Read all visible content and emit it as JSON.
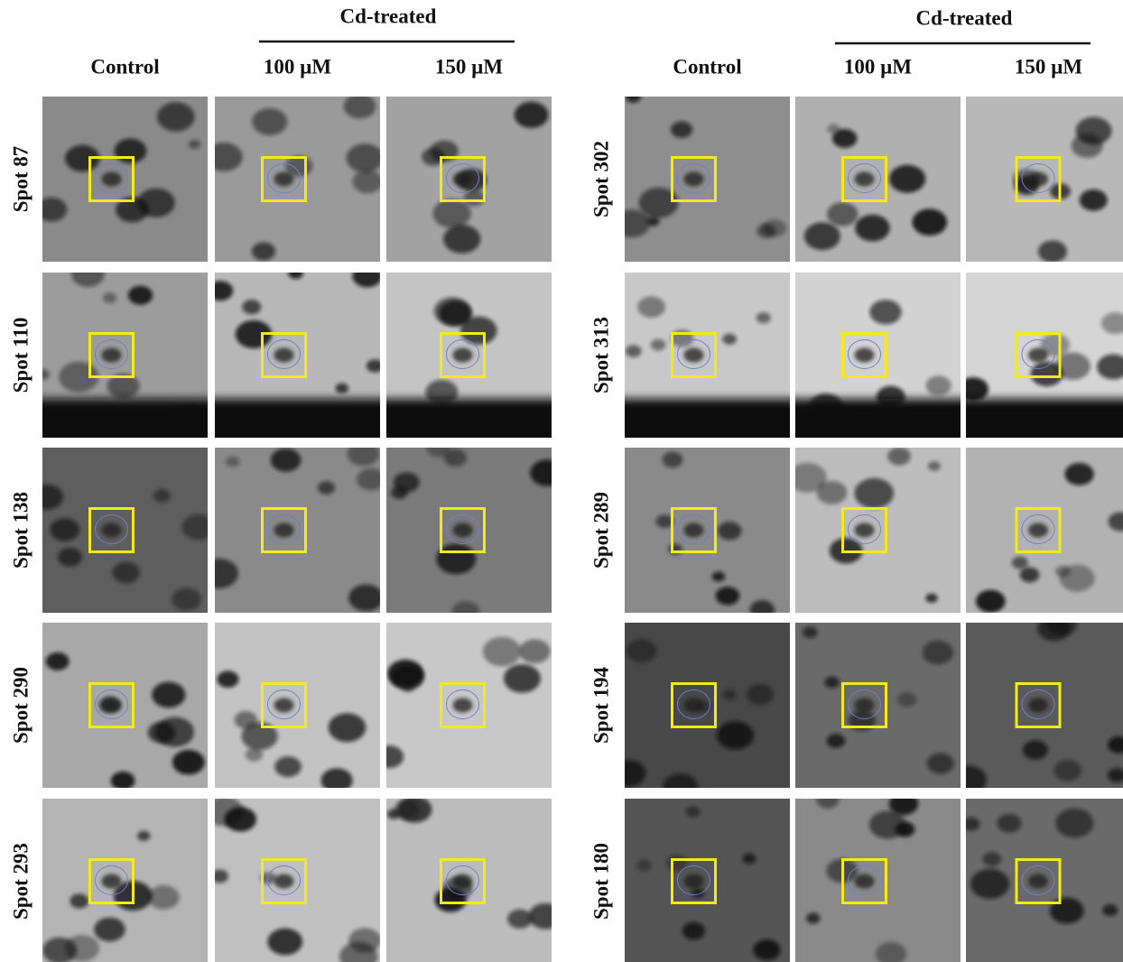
{
  "panels": [
    {
      "header": "Cd-treated",
      "columns": [
        "Control",
        "100 µM",
        "150 µM"
      ],
      "rows": [
        "Spot 87",
        "Spot 110",
        "Spot 138",
        "Spot 290",
        "Spot 293"
      ]
    },
    {
      "header": "Cd-treated",
      "columns": [
        "Control",
        "100 µM",
        "150 µM"
      ],
      "rows": [
        "Spot 302",
        "Spot 313",
        "Spot 289",
        "Spot 194",
        "Spot 180"
      ]
    }
  ]
}
